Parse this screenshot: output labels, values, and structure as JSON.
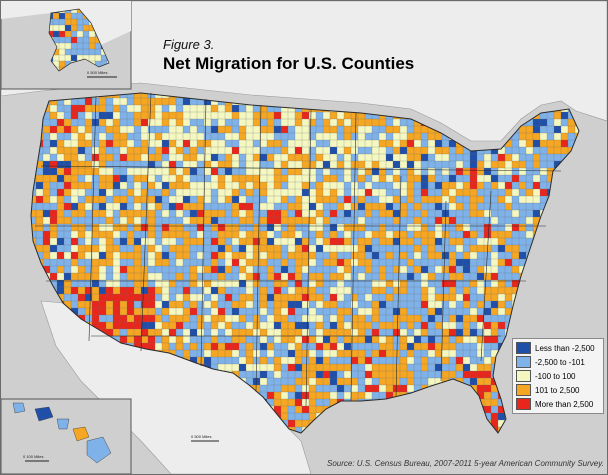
{
  "figure_label": "Figure 3.",
  "title": "Net Migration for U.S. Counties",
  "source": "Source: U.S. Census Bureau, 2007-2011 5-year American Community Survey.",
  "scale_bars": {
    "alaska": "0      500 Miles",
    "hawaii": "0     100 Miles",
    "conus": "0    500 Miles"
  },
  "legend": {
    "items": [
      {
        "label": "Less than -2,500",
        "color": "#1f4fa8"
      },
      {
        "label": "-2,500 to -101",
        "color": "#7fb2e8"
      },
      {
        "label": "-100 to 100",
        "color": "#f4f7c0"
      },
      {
        "label": "101 to 2,500",
        "color": "#f5a623"
      },
      {
        "label": "More than 2,500",
        "color": "#e8261c"
      }
    ]
  },
  "colors": {
    "water": "#cfcfcf",
    "foreign_land": "#ededed",
    "state_border": "#2b2b2b"
  }
}
